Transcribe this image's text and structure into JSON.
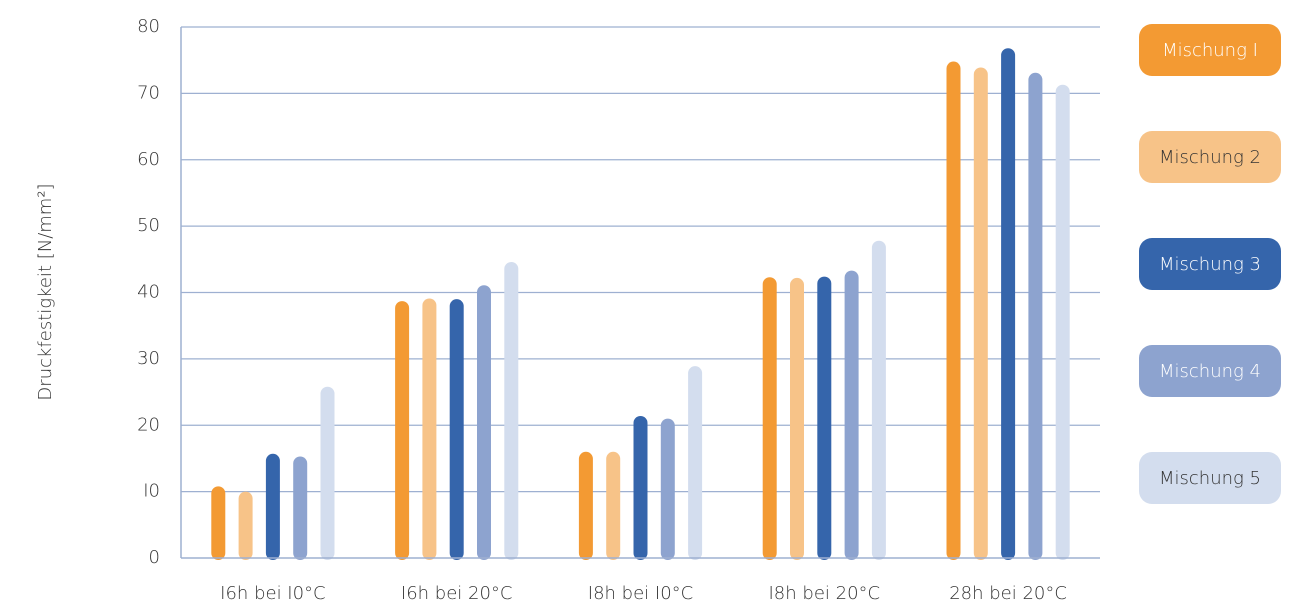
{
  "chart_data": {
    "type": "bar",
    "title": "",
    "xlabel": "",
    "ylabel": "Druckfestigkeit [N/mm²]",
    "ylim": [
      0,
      80
    ],
    "yticks": [
      0,
      10,
      20,
      30,
      40,
      50,
      60,
      70,
      80
    ],
    "ytick_labels": [
      "0",
      "I0",
      "20",
      "30",
      "40",
      "50",
      "60",
      "70",
      "80"
    ],
    "grid": true,
    "legend_position": "right",
    "categories": [
      "I6h bei  I0°C",
      "I6h bei 20°C",
      "I8h bei  I0°C",
      "I8h bei 20°C",
      "28h bei 20°C"
    ],
    "series": [
      {
        "name": "Mischung I",
        "color": "#F39A33",
        "text_color": "#FFFFFF",
        "values": [
          10.8,
          38.7,
          16.0,
          42.3,
          74.8
        ]
      },
      {
        "name": "Mischung 2",
        "color": "#F7C388",
        "text_color": "#333333",
        "values": [
          10.0,
          39.1,
          16.0,
          42.2,
          73.9
        ]
      },
      {
        "name": "Mischung 3",
        "color": "#3565AB",
        "text_color": "#FFFFFF",
        "values": [
          15.7,
          39.0,
          21.4,
          42.4,
          76.8
        ]
      },
      {
        "name": "Mischung 4",
        "color": "#8DA3CF",
        "text_color": "#FFFFFF",
        "values": [
          15.3,
          41.1,
          21.0,
          43.3,
          73.1
        ]
      },
      {
        "name": "Mischung 5",
        "color": "#D3DDEE",
        "text_color": "#333333",
        "values": [
          25.8,
          44.6,
          28.9,
          47.8,
          71.3
        ]
      }
    ],
    "axis_color": "#9EB0D1",
    "text_color": "#333333"
  }
}
